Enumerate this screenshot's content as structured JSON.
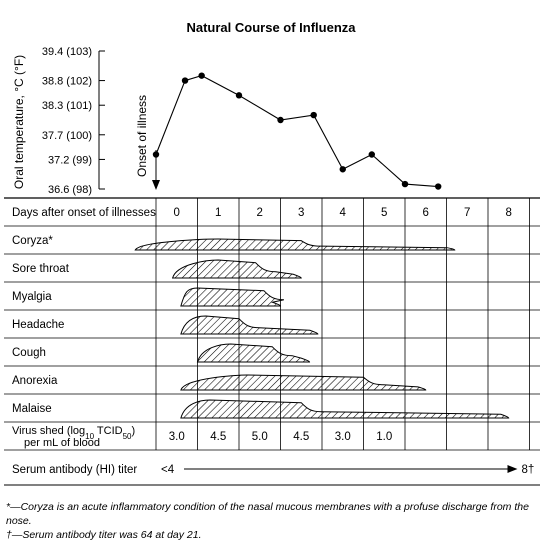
{
  "chart_data": {
    "type": "line",
    "title": "Natural Course of Influenza",
    "ylabel": "Oral temperature, °C (°F)",
    "y_ticks": [
      "39.4 (103)",
      "38.8 (102)",
      "38.3 (101)",
      "37.7 (100)",
      "37.2  (99)",
      "36.6  (98)"
    ],
    "y_tick_values": [
      39.4,
      38.8,
      38.3,
      37.7,
      37.2,
      36.6
    ],
    "ylim": [
      36.6,
      39.4
    ],
    "annotation": "Onset of illness",
    "x_label": "Days after onset of illnesses",
    "x_ticks": [
      "0",
      "1",
      "2",
      "3",
      "4",
      "5",
      "6",
      "7",
      "8"
    ],
    "series": [
      {
        "x": [
          -0.5,
          0.2,
          0.6,
          1.5,
          2.5,
          3.3,
          4.0,
          4.7,
          5.5,
          6.3
        ],
        "values": [
          37.3,
          38.8,
          38.9,
          38.5,
          38.0,
          38.1,
          37.0,
          37.3,
          36.7,
          36.65
        ]
      }
    ],
    "symptoms": [
      {
        "label": "Coryza*",
        "start": -0.5,
        "peak": 1.5,
        "end": 7.2,
        "height": 0.55,
        "plateau_end": 3.5
      },
      {
        "label": "Sore throat",
        "start": 0.4,
        "peak": 1.5,
        "end": 3.5,
        "height": 0.9,
        "plateau_end": 2.4
      },
      {
        "label": "Myalgia",
        "start": 0.6,
        "peak": 1.0,
        "end": 3.0,
        "height": 0.9,
        "plateau_end": 2.6
      },
      {
        "label": "Headache",
        "start": 0.6,
        "peak": 1.2,
        "end": 3.9,
        "height": 0.9,
        "plateau_end": 2.0
      },
      {
        "label": "Cough",
        "start": 1.0,
        "peak": 1.8,
        "end": 3.7,
        "height": 0.9,
        "plateau_end": 2.8
      },
      {
        "label": "Anorexia",
        "start": 0.6,
        "peak": 2.2,
        "end": 6.5,
        "height": 0.75,
        "plateau_end": 5.0
      },
      {
        "label": "Malaise",
        "start": 0.6,
        "peak": 1.3,
        "end": 8.5,
        "height": 0.9,
        "plateau_end": 3.5
      }
    ],
    "virus_shed": {
      "label_line1": "Virus shed (log",
      "label_sub": "10",
      "label_line1b": " TCID",
      "label_sub2": "50",
      "label_line1c": ")",
      "label_line2": "per mL of blood",
      "values": [
        "3.0",
        "4.5",
        "5.0",
        "4.5",
        "3.0",
        "1.0",
        "",
        "",
        ""
      ]
    },
    "antibody": {
      "label": "Serum antibody (HI) titer",
      "start": "<4",
      "end": "8†"
    }
  },
  "footnotes": {
    "coryza": "*—Coryza is an acute inflammatory condition of the nasal mucous membranes with a profuse discharge from the nose.",
    "titer": "†—Serum antibody titer was 64 at day 21."
  }
}
